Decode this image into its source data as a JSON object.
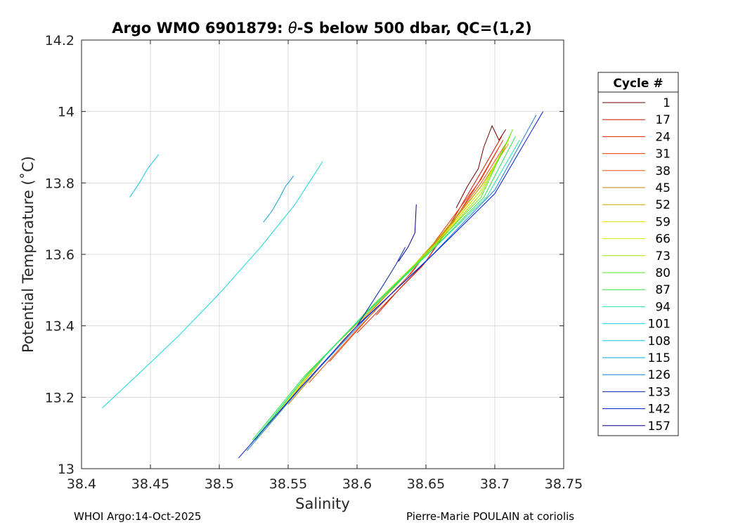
{
  "chart_data": {
    "type": "line",
    "title_prefix": "Argo WMO 6901879: ",
    "title_theta": "θ",
    "title_suffix": "-S below 500 dbar,  QC=(1,2)",
    "xlabel": "Salinity",
    "ylabel": "Potential Temperature (˚C)",
    "xlim": [
      38.4,
      38.75
    ],
    "ylim": [
      13.0,
      14.2
    ],
    "xticks": [
      "38.4",
      "38.45",
      "38.5",
      "38.55",
      "38.6",
      "38.65",
      "38.7",
      "38.75"
    ],
    "xtick_values": [
      38.4,
      38.45,
      38.5,
      38.55,
      38.6,
      38.65,
      38.7,
      38.75
    ],
    "yticks": [
      "13",
      "13.2",
      "13.4",
      "13.6",
      "13.8",
      "14",
      "14.2"
    ],
    "ytick_values": [
      13.0,
      13.2,
      13.4,
      13.6,
      13.8,
      14.0,
      14.2
    ],
    "grid": true,
    "legend_title": "Cycle #",
    "legend_position": "outside-right",
    "series": [
      {
        "name": "1",
        "color": "#6e0000",
        "x": [
          38.672,
          38.68,
          38.688,
          38.692,
          38.698,
          38.703,
          38.708
        ],
        "y": [
          13.73,
          13.79,
          13.84,
          13.9,
          13.96,
          13.92,
          13.95
        ]
      },
      {
        "name": "17",
        "color": "#d41400",
        "x": [
          38.614,
          38.63,
          38.65,
          38.67,
          38.69,
          38.705
        ],
        "y": [
          13.43,
          13.5,
          13.58,
          13.7,
          13.83,
          13.93
        ]
      },
      {
        "name": "24",
        "color": "#e52000",
        "x": [
          38.6,
          38.625,
          38.648,
          38.668,
          38.688,
          38.703
        ],
        "y": [
          13.38,
          13.48,
          13.57,
          13.68,
          13.8,
          13.9
        ]
      },
      {
        "name": "31",
        "color": "#ee3a00",
        "x": [
          38.58,
          38.61,
          38.64,
          38.665,
          38.69,
          38.706
        ],
        "y": [
          13.3,
          13.43,
          13.55,
          13.68,
          13.81,
          13.92
        ]
      },
      {
        "name": "38",
        "color": "#e8561a",
        "x": [
          38.565,
          38.6,
          38.635,
          38.665,
          38.69,
          38.708
        ],
        "y": [
          13.24,
          13.39,
          13.53,
          13.67,
          13.8,
          13.91
        ]
      },
      {
        "name": "45",
        "color": "#c78200",
        "x": [
          38.55,
          38.59,
          38.63,
          38.663,
          38.69,
          38.708
        ],
        "y": [
          13.18,
          13.36,
          13.52,
          13.66,
          13.79,
          13.9
        ]
      },
      {
        "name": "52",
        "color": "#c9a700",
        "x": [
          38.54,
          38.58,
          38.625,
          38.66,
          38.69,
          38.71
        ],
        "y": [
          13.14,
          13.33,
          13.5,
          13.65,
          13.79,
          13.91
        ]
      },
      {
        "name": "59",
        "color": "#e3e000",
        "x": [
          38.535,
          38.575,
          38.62,
          38.66,
          38.69,
          38.71
        ],
        "y": [
          13.12,
          13.31,
          13.49,
          13.64,
          13.78,
          13.92
        ]
      },
      {
        "name": "66",
        "color": "#c8ee00",
        "x": [
          38.53,
          38.57,
          38.615,
          38.657,
          38.69,
          38.711
        ],
        "y": [
          13.1,
          13.29,
          13.47,
          13.63,
          13.78,
          13.93
        ]
      },
      {
        "name": "73",
        "color": "#9ee600",
        "x": [
          38.528,
          38.565,
          38.612,
          38.656,
          38.69,
          38.712
        ],
        "y": [
          13.09,
          13.27,
          13.46,
          13.62,
          13.77,
          13.94
        ]
      },
      {
        "name": "80",
        "color": "#5ae51e",
        "x": [
          38.526,
          38.563,
          38.61,
          38.655,
          38.69,
          38.713
        ],
        "y": [
          13.08,
          13.26,
          13.45,
          13.62,
          13.76,
          13.95
        ]
      },
      {
        "name": "87",
        "color": "#2ee04f",
        "x": [
          38.524,
          38.562,
          38.608,
          38.654,
          38.692,
          38.715
        ],
        "y": [
          13.08,
          13.26,
          13.44,
          13.61,
          13.76,
          13.93
        ]
      },
      {
        "name": "94",
        "color": "#1ee8a6",
        "x": [
          38.523,
          38.561,
          38.607,
          38.654,
          38.694,
          38.718
        ],
        "y": [
          13.07,
          13.25,
          13.44,
          13.61,
          13.76,
          13.92
        ]
      },
      {
        "name": "101",
        "color": "#16d8e0",
        "x": [
          38.415,
          38.44,
          38.47,
          38.5,
          38.53,
          38.555,
          38.575
        ],
        "y": [
          13.17,
          13.26,
          13.37,
          13.49,
          13.62,
          13.74,
          13.86
        ]
      },
      {
        "name": "108",
        "color": "#12c6e6",
        "x": [
          38.435,
          38.442,
          38.448,
          38.456
        ],
        "y": [
          13.76,
          13.8,
          13.84,
          13.88
        ]
      },
      {
        "name": "115",
        "color": "#0aa5d4",
        "x": [
          38.532,
          38.538,
          38.544,
          38.548,
          38.554
        ],
        "y": [
          13.69,
          13.72,
          13.76,
          13.79,
          13.82
        ]
      },
      {
        "name": "126",
        "color": "#1a7ed8",
        "x": [
          38.52,
          38.56,
          38.606,
          38.655,
          38.7,
          38.73
        ],
        "y": [
          13.05,
          13.23,
          13.42,
          13.6,
          13.78,
          13.99
        ]
      },
      {
        "name": "133",
        "color": "#0028a8",
        "x": [
          38.6,
          38.61,
          38.62,
          38.628,
          38.635
        ],
        "y": [
          13.4,
          13.46,
          13.52,
          13.57,
          13.62
        ]
      },
      {
        "name": "142",
        "color": "#0014d8",
        "x": [
          38.514,
          38.555,
          38.6,
          38.65,
          38.7,
          38.735
        ],
        "y": [
          13.03,
          13.21,
          13.4,
          13.58,
          13.77,
          14.0
        ]
      },
      {
        "name": "157",
        "color": "#000090",
        "x": [
          38.63,
          38.637,
          38.642,
          38.643
        ],
        "y": [
          13.58,
          13.62,
          13.66,
          13.74
        ]
      }
    ]
  },
  "footer": {
    "left": "WHOI Argo:14-Oct-2025",
    "right": "Pierre-Marie POULAIN at coriolis"
  }
}
